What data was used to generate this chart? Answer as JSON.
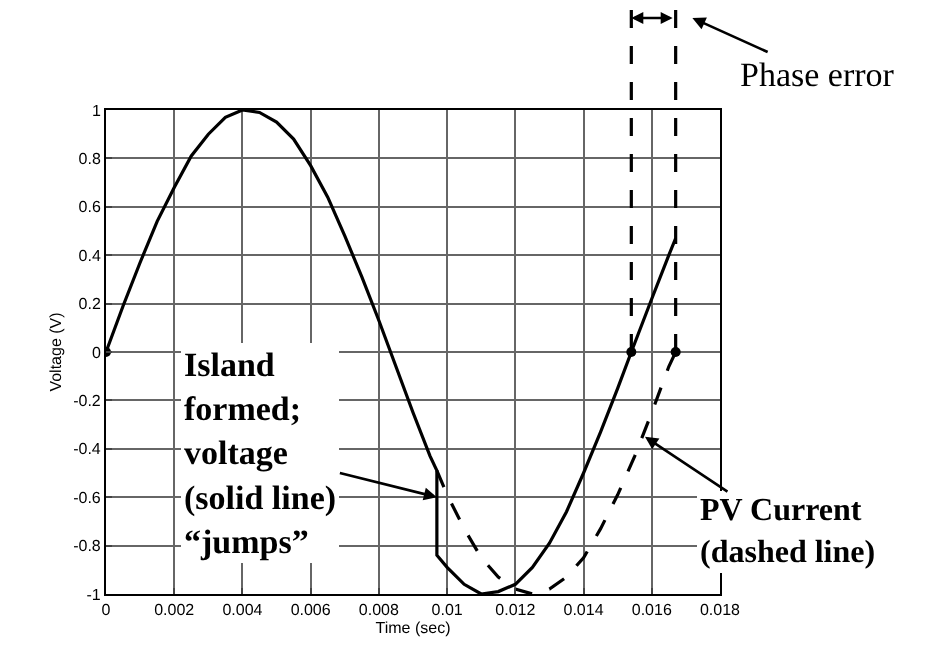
{
  "chart_data": {
    "type": "line",
    "xlabel": "Time (sec)",
    "ylabel": "Voltage (V)",
    "xlim": [
      0,
      0.018
    ],
    "xticks": [
      0,
      0.002,
      0.004,
      0.006,
      0.008,
      0.01,
      0.012,
      0.014,
      0.016,
      0.018
    ],
    "ylim": [
      -1,
      1
    ],
    "yticks": [
      -1,
      -0.8,
      -0.6,
      -0.4,
      -0.2,
      0,
      0.2,
      0.4,
      0.6,
      0.8,
      1
    ],
    "grid": true,
    "series": [
      {
        "color": "#000000",
        "line_style": "solid",
        "x": [
          0,
          0.0005,
          0.001,
          0.0015,
          0.002,
          0.0025,
          0.003,
          0.0035,
          0.004,
          0.0045,
          0.005,
          0.0055,
          0.006,
          0.0065,
          0.007,
          0.0075,
          0.008,
          0.0085,
          0.009,
          0.0095,
          0.0097,
          0.0097,
          0.01,
          0.0105,
          0.011,
          0.0115,
          0.012,
          0.0125,
          0.013,
          0.0135,
          0.014,
          0.0145,
          0.015,
          0.0154,
          0.016,
          0.0165,
          0.0167
        ],
        "values": [
          0,
          0.19,
          0.37,
          0.54,
          0.68,
          0.81,
          0.9,
          0.97,
          1,
          0.99,
          0.95,
          0.88,
          0.77,
          0.64,
          0.48,
          0.31,
          0.13,
          -0.06,
          -0.25,
          -0.43,
          -0.49,
          -0.84,
          -0.89,
          -0.96,
          -1,
          -0.99,
          -0.96,
          -0.89,
          -0.79,
          -0.66,
          -0.5,
          -0.33,
          -0.15,
          0,
          0.22,
          0.4,
          0.47
        ]
      },
      {
        "color": "#000000",
        "line_style": "dashed",
        "x": [
          0.0097,
          0.01,
          0.0105,
          0.011,
          0.0115,
          0.012,
          0.0125,
          0.013,
          0.0135,
          0.014,
          0.0145,
          0.015,
          0.0155,
          0.016,
          0.0165,
          0.0167
        ],
        "values": [
          -0.49,
          -0.59,
          -0.73,
          -0.85,
          -0.93,
          -0.98,
          -1,
          -0.98,
          -0.93,
          -0.85,
          -0.73,
          -0.59,
          -0.43,
          -0.25,
          -0.06,
          0
        ]
      },
      {
        "type": "scatter",
        "marker": "circle",
        "color": "#000000",
        "x": [
          0,
          0.0154,
          0.0167
        ],
        "values": [
          0,
          0,
          0
        ]
      }
    ],
    "ref_lines": [
      {
        "axis": "x",
        "value": 0.0154,
        "line_style": "dashed",
        "color": "#000000"
      },
      {
        "axis": "x",
        "value": 0.0167,
        "line_style": "dashed",
        "color": "#000000"
      }
    ],
    "annotations": [
      "Phase error",
      {
        "text": "Island\nformed;\nvoltage\n(solid line)\n“jumps”",
        "x": 0.0097,
        "y": -0.6
      },
      {
        "text": "PV Current\n(dashed line)",
        "x": 0.0158,
        "y": -0.35
      }
    ]
  }
}
